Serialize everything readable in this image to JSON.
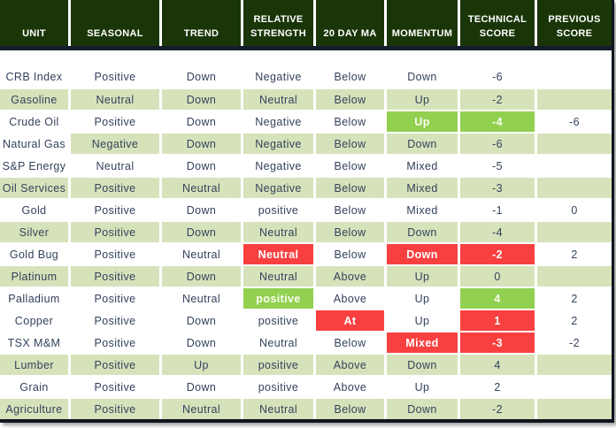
{
  "colors": {
    "header_bg": "#1a3609",
    "row_green": "#d6e3ba",
    "highlight_green": "#92d050",
    "highlight_red": "#f94040",
    "body_text": "#33425c",
    "header_text": "#ffffff",
    "divider": "#151c2c"
  },
  "table": {
    "columns": [
      {
        "id": "unit",
        "label": "UNIT"
      },
      {
        "id": "seasonal",
        "label": "SEASONAL"
      },
      {
        "id": "trend",
        "label": "TREND"
      },
      {
        "id": "relative-strength",
        "label": "RELATIVE STRENGTH"
      },
      {
        "id": "20-day-ma",
        "label": "20 DAY MA"
      },
      {
        "id": "momentum",
        "label": "MOMENTUM"
      },
      {
        "id": "technical-score",
        "label": "TECHNICAL SCORE"
      },
      {
        "id": "previous-score",
        "label": "PREVIOUS SCORE"
      }
    ],
    "rows": [
      {
        "bg": "white",
        "tall": true,
        "cells": [
          {
            "t": "CRB Index"
          },
          {
            "t": "Positive"
          },
          {
            "t": "Down"
          },
          {
            "t": "Negative"
          },
          {
            "t": "Below"
          },
          {
            "t": "Down"
          },
          {
            "t": "-6"
          },
          {
            "t": ""
          }
        ]
      },
      {
        "bg": "green",
        "cells": [
          {
            "t": "Gasoline"
          },
          {
            "t": "Neutral"
          },
          {
            "t": "Down"
          },
          {
            "t": "Neutral"
          },
          {
            "t": "Below"
          },
          {
            "t": "Up"
          },
          {
            "t": "-2"
          },
          {
            "t": ""
          }
        ]
      },
      {
        "bg": "white",
        "cells": [
          {
            "t": "Crude Oil"
          },
          {
            "t": "Positive"
          },
          {
            "t": "Down"
          },
          {
            "t": "Negative"
          },
          {
            "t": "Below"
          },
          {
            "t": "Up",
            "hl": "green"
          },
          {
            "t": "-4",
            "hl": "green"
          },
          {
            "t": "-6"
          }
        ]
      },
      {
        "bg": "green",
        "cells": [
          {
            "t": "Natural Gas",
            "bg": "white"
          },
          {
            "t": "Negative"
          },
          {
            "t": "Down"
          },
          {
            "t": "Negative"
          },
          {
            "t": "Below"
          },
          {
            "t": "Down"
          },
          {
            "t": "-6"
          },
          {
            "t": ""
          }
        ]
      },
      {
        "bg": "white",
        "cells": [
          {
            "t": "S&P Energy"
          },
          {
            "t": "Neutral"
          },
          {
            "t": "Down"
          },
          {
            "t": "Negative"
          },
          {
            "t": "Below"
          },
          {
            "t": "Mixed"
          },
          {
            "t": "-5"
          },
          {
            "t": ""
          }
        ]
      },
      {
        "bg": "green",
        "cells": [
          {
            "t": "Oil Services"
          },
          {
            "t": "Positive"
          },
          {
            "t": "Neutral"
          },
          {
            "t": "Negative"
          },
          {
            "t": "Below"
          },
          {
            "t": "Mixed"
          },
          {
            "t": "-3"
          },
          {
            "t": ""
          }
        ]
      },
      {
        "bg": "white",
        "cells": [
          {
            "t": "Gold"
          },
          {
            "t": "Positive"
          },
          {
            "t": "Down"
          },
          {
            "t": "positive"
          },
          {
            "t": "Below"
          },
          {
            "t": "Mixed"
          },
          {
            "t": "-1"
          },
          {
            "t": "0"
          }
        ]
      },
      {
        "bg": "green",
        "cells": [
          {
            "t": "Silver"
          },
          {
            "t": "Positive"
          },
          {
            "t": "Down"
          },
          {
            "t": "Neutral"
          },
          {
            "t": "Below"
          },
          {
            "t": "Down"
          },
          {
            "t": "-4"
          },
          {
            "t": ""
          }
        ]
      },
      {
        "bg": "white",
        "cells": [
          {
            "t": "Gold Bug"
          },
          {
            "t": "Positive"
          },
          {
            "t": "Neutral"
          },
          {
            "t": "Neutral",
            "hl": "red"
          },
          {
            "t": "Below"
          },
          {
            "t": "Down",
            "hl": "red"
          },
          {
            "t": "-2",
            "hl": "red"
          },
          {
            "t": "2"
          }
        ]
      },
      {
        "bg": "green",
        "cells": [
          {
            "t": "Platinum"
          },
          {
            "t": "Positive"
          },
          {
            "t": "Down"
          },
          {
            "t": "Neutral"
          },
          {
            "t": "Above"
          },
          {
            "t": "Up"
          },
          {
            "t": "0"
          },
          {
            "t": ""
          }
        ]
      },
      {
        "bg": "white",
        "cells": [
          {
            "t": "Palladium"
          },
          {
            "t": "Positive"
          },
          {
            "t": "Neutral"
          },
          {
            "t": "positive",
            "hl": "green"
          },
          {
            "t": "Above"
          },
          {
            "t": "Up"
          },
          {
            "t": "4",
            "hl": "green"
          },
          {
            "t": "2"
          }
        ]
      },
      {
        "bg": "white",
        "cells": [
          {
            "t": "Copper"
          },
          {
            "t": "Positive"
          },
          {
            "t": "Down"
          },
          {
            "t": "positive"
          },
          {
            "t": "At",
            "hl": "red"
          },
          {
            "t": "Up"
          },
          {
            "t": "1",
            "hl": "red"
          },
          {
            "t": "2"
          }
        ]
      },
      {
        "bg": "white",
        "cells": [
          {
            "t": "TSX M&M"
          },
          {
            "t": "Positive"
          },
          {
            "t": "Down"
          },
          {
            "t": "Neutral"
          },
          {
            "t": "Below"
          },
          {
            "t": "Mixed",
            "hl": "red"
          },
          {
            "t": "-3",
            "hl": "red"
          },
          {
            "t": "-2"
          }
        ]
      },
      {
        "bg": "green",
        "cells": [
          {
            "t": "Lumber"
          },
          {
            "t": "Positive"
          },
          {
            "t": "Up"
          },
          {
            "t": "positive"
          },
          {
            "t": "Above"
          },
          {
            "t": "Down"
          },
          {
            "t": "4"
          },
          {
            "t": ""
          }
        ]
      },
      {
        "bg": "white",
        "cells": [
          {
            "t": "Grain"
          },
          {
            "t": "Positive"
          },
          {
            "t": "Down"
          },
          {
            "t": "positive"
          },
          {
            "t": "Above"
          },
          {
            "t": "Up"
          },
          {
            "t": "2"
          },
          {
            "t": ""
          }
        ]
      },
      {
        "bg": "green",
        "cells": [
          {
            "t": "Agriculture"
          },
          {
            "t": "Positive"
          },
          {
            "t": "Neutral"
          },
          {
            "t": "Neutral"
          },
          {
            "t": "Below"
          },
          {
            "t": "Down"
          },
          {
            "t": "-2"
          },
          {
            "t": ""
          }
        ]
      }
    ]
  }
}
